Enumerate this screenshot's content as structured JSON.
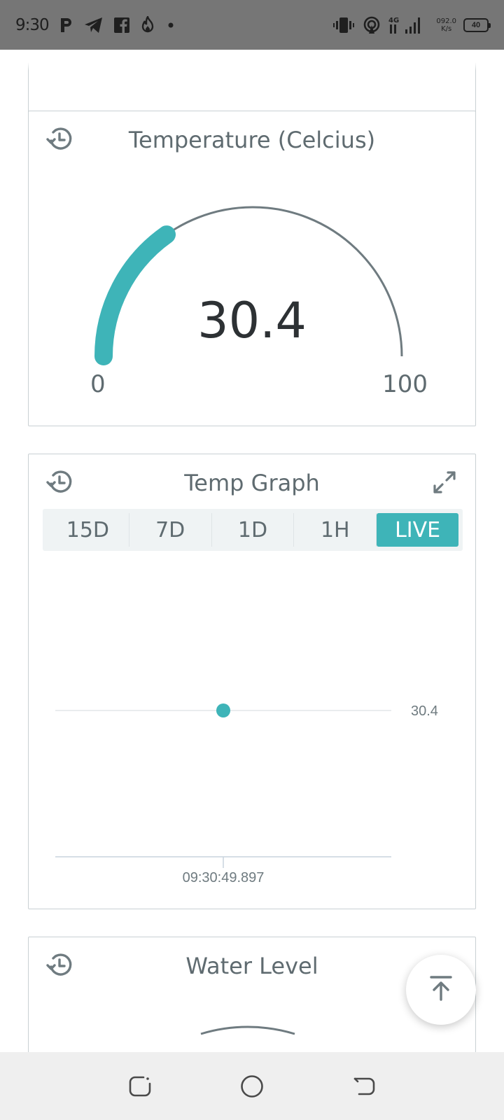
{
  "status_bar": {
    "time": "9:30",
    "netspeed_value": "092.0",
    "netspeed_unit": "K/s",
    "battery": "40",
    "network_type": "4G"
  },
  "cards": {
    "temperature": {
      "title": "Temperature (Celcius)",
      "value": "30.4",
      "value_number": 30.4,
      "min": "0",
      "max": "100",
      "min_number": 0,
      "max_number": 100,
      "accent_color": "#3eb4b8",
      "track_color": "#6f7b80"
    },
    "temp_graph": {
      "title": "Temp Graph",
      "ranges": [
        "15D",
        "7D",
        "1D",
        "1H",
        "LIVE"
      ],
      "active_range": "LIVE"
    },
    "water_level": {
      "title": "Water Level"
    }
  },
  "chart_data": {
    "type": "scatter",
    "title": "Temp Graph",
    "x": [
      "09:30:49.897"
    ],
    "y": [
      30.4
    ],
    "x_tick_labels": [
      "09:30:49.897"
    ],
    "y_tick_labels": [
      "30.4"
    ],
    "color": "#3eb4b8",
    "grid": true
  }
}
